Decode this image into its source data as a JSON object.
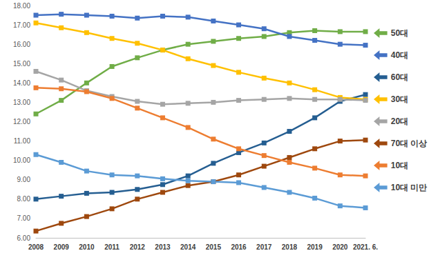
{
  "chart_data": {
    "type": "line",
    "categories": [
      "2008",
      "2009",
      "2010",
      "2011",
      "2012",
      "2013",
      "2014",
      "2015",
      "2016",
      "2017",
      "2018",
      "2019",
      "2020",
      "2021. 6."
    ],
    "series": [
      {
        "name": "50대",
        "color": "#70AD47",
        "values": [
          12.4,
          13.1,
          14.0,
          14.85,
          15.3,
          15.7,
          16.0,
          16.15,
          16.3,
          16.4,
          16.6,
          16.7,
          16.65,
          16.65
        ]
      },
      {
        "name": "40대",
        "color": "#4472C4",
        "values": [
          17.5,
          17.55,
          17.5,
          17.45,
          17.35,
          17.45,
          17.4,
          17.2,
          17.0,
          16.8,
          16.4,
          16.2,
          16.0,
          15.95
        ]
      },
      {
        "name": "60대",
        "color": "#255E91",
        "values": [
          8.0,
          8.15,
          8.3,
          8.35,
          8.5,
          8.75,
          9.2,
          9.85,
          10.4,
          10.9,
          11.5,
          12.2,
          13.05,
          13.4
        ]
      },
      {
        "name": "30대",
        "color": "#FFC000",
        "values": [
          17.1,
          16.85,
          16.6,
          16.3,
          16.05,
          15.7,
          15.25,
          14.9,
          14.55,
          14.25,
          14.0,
          13.65,
          13.25,
          13.15
        ]
      },
      {
        "name": "20대",
        "color": "#A5A5A5",
        "values": [
          14.6,
          14.15,
          13.6,
          13.3,
          13.05,
          12.9,
          12.95,
          13.0,
          13.1,
          13.15,
          13.2,
          13.15,
          13.15,
          13.1
        ]
      },
      {
        "name": "70대 이상",
        "color": "#9E480E",
        "values": [
          6.35,
          6.75,
          7.1,
          7.5,
          8.0,
          8.35,
          8.7,
          8.9,
          9.25,
          9.7,
          10.15,
          10.6,
          11.0,
          11.05
        ]
      },
      {
        "name": "10대",
        "color": "#ED7D31",
        "values": [
          13.75,
          13.7,
          13.55,
          13.2,
          12.7,
          12.2,
          11.7,
          11.1,
          10.6,
          10.25,
          9.9,
          9.6,
          9.25,
          9.2
        ]
      },
      {
        "name": "10대 미만",
        "color": "#5B9BD5",
        "values": [
          10.3,
          9.9,
          9.45,
          9.25,
          9.2,
          9.05,
          8.95,
          8.9,
          8.85,
          8.6,
          8.35,
          8.05,
          7.65,
          7.55
        ]
      }
    ],
    "ylim": [
      6,
      18
    ],
    "yticks": [
      {
        "value": 6,
        "label": "6.00"
      },
      {
        "value": 7,
        "label": "7.00"
      },
      {
        "value": 8,
        "label": "8.00"
      },
      {
        "value": 9,
        "label": "9.00"
      },
      {
        "value": 10,
        "label": "10.00"
      },
      {
        "value": 11,
        "label": "11.00"
      },
      {
        "value": 12,
        "label": "12.00"
      },
      {
        "value": 13,
        "label": "13.00"
      },
      {
        "value": 14,
        "label": "14.00"
      },
      {
        "value": 15,
        "label": "15.00"
      },
      {
        "value": 16,
        "label": "16.00"
      },
      {
        "value": 17,
        "label": "17.00"
      },
      {
        "value": 18,
        "label": "18.00"
      }
    ],
    "grid": false,
    "legend": "right",
    "marker": "square"
  }
}
